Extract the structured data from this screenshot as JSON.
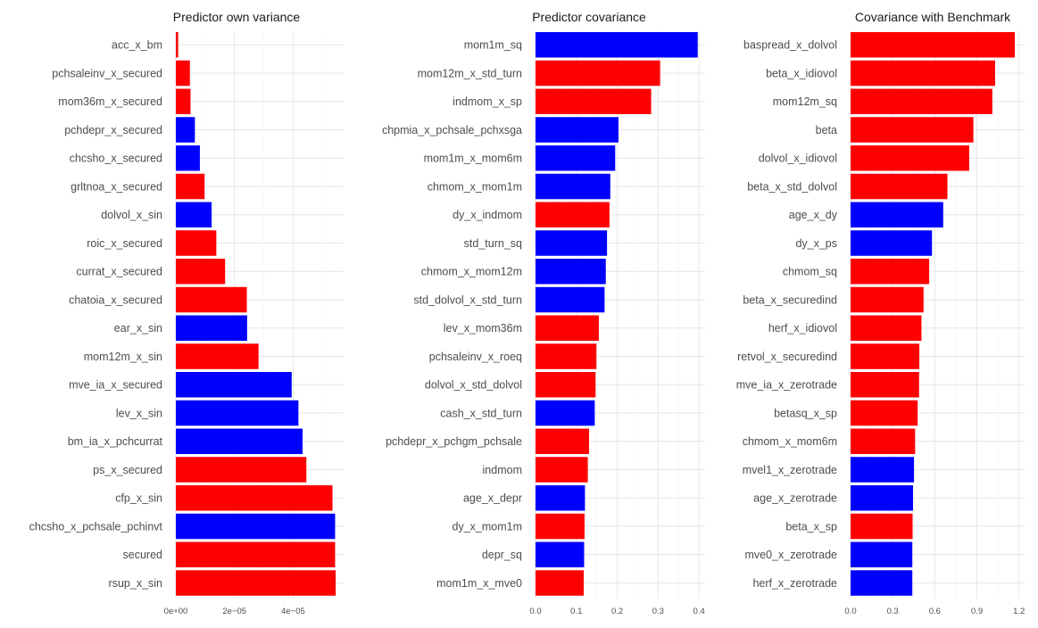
{
  "colors": {
    "red": "#ff0000",
    "blue": "#0000ff"
  },
  "chart_data": [
    {
      "type": "bar",
      "orientation": "horizontal",
      "title": "Predictor own variance",
      "xlabel": "",
      "ylabel": "",
      "xlim": [
        0,
        5.72e-05
      ],
      "xticks": [
        0,
        2e-05,
        4e-05
      ],
      "xtick_labels": [
        "0e+00",
        "2e−05",
        "4e−05"
      ],
      "categories": [
        "acc_x_bm",
        "pchsaleinv_x_secured",
        "mom36m_x_secured",
        "pchdepr_x_secured",
        "chcsho_x_secured",
        "grltnoa_x_secured",
        "dolvol_x_sin",
        "roic_x_secured",
        "currat_x_secured",
        "chatoia_x_secured",
        "ear_x_sin",
        "mom12m_x_sin",
        "mve_ia_x_secured",
        "lev_x_sin",
        "bm_ia_x_pchcurrat",
        "ps_x_secured",
        "cfp_x_sin",
        "chcsho_x_pchsale_pchinvt",
        "secured",
        "rsup_x_sin"
      ],
      "values": [
        8e-07,
        4.8e-06,
        5e-06,
        6.5e-06,
        8.2e-06,
        9.8e-06,
        1.22e-05,
        1.38e-05,
        1.68e-05,
        2.42e-05,
        2.43e-05,
        2.82e-05,
        3.95e-05,
        4.18e-05,
        4.32e-05,
        4.45e-05,
        5.34e-05,
        5.43e-05,
        5.43e-05,
        5.45e-05
      ],
      "bar_colors": [
        "red",
        "red",
        "red",
        "blue",
        "blue",
        "red",
        "blue",
        "red",
        "red",
        "red",
        "blue",
        "red",
        "blue",
        "blue",
        "blue",
        "red",
        "red",
        "blue",
        "red",
        "red"
      ]
    },
    {
      "type": "bar",
      "orientation": "horizontal",
      "title": "Predictor covariance",
      "xlabel": "",
      "ylabel": "",
      "xlim": [
        0,
        0.415
      ],
      "xticks": [
        0,
        0.1,
        0.2,
        0.3,
        0.4
      ],
      "xtick_labels": [
        "0.0",
        "0.1",
        "0.2",
        "0.3",
        "0.4"
      ],
      "categories": [
        "mom1m_sq",
        "mom12m_x_std_turn",
        "indmom_x_sp",
        "chpmia_x_pchsale_pchxsga",
        "mom1m_x_mom6m",
        "chmom_x_mom1m",
        "dy_x_indmom",
        "std_turn_sq",
        "chmom_x_mom12m",
        "std_dolvol_x_std_turn",
        "lev_x_mom36m",
        "pchsaleinv_x_roeq",
        "dolvol_x_std_dolvol",
        "cash_x_std_turn",
        "pchdepr_x_pchgm_pchsale",
        "indmom",
        "age_x_depr",
        "dy_x_mom1m",
        "depr_sq",
        "mom1m_x_mve0"
      ],
      "values": [
        0.397,
        0.305,
        0.283,
        0.203,
        0.195,
        0.183,
        0.181,
        0.175,
        0.172,
        0.169,
        0.155,
        0.149,
        0.147,
        0.145,
        0.131,
        0.128,
        0.121,
        0.12,
        0.119,
        0.118
      ],
      "bar_colors": [
        "blue",
        "red",
        "red",
        "blue",
        "blue",
        "blue",
        "red",
        "blue",
        "blue",
        "blue",
        "red",
        "red",
        "red",
        "blue",
        "red",
        "red",
        "blue",
        "red",
        "blue",
        "red"
      ]
    },
    {
      "type": "bar",
      "orientation": "horizontal",
      "title": "Covariance with Benchmark",
      "xlabel": "",
      "ylabel": "",
      "xlim": [
        0,
        1.24
      ],
      "xticks": [
        0,
        0.3,
        0.6,
        0.9,
        1.2
      ],
      "xtick_labels": [
        "0.0",
        "0.3",
        "0.6",
        "0.9",
        "1.2"
      ],
      "categories": [
        "baspread_x_dolvol",
        "beta_x_idiovol",
        "mom12m_sq",
        "beta",
        "dolvol_x_idiovol",
        "beta_x_std_dolvol",
        "age_x_dy",
        "dy_x_ps",
        "chmom_sq",
        "beta_x_securedind",
        "herf_x_idiovol",
        "retvol_x_securedind",
        "mve_ia_x_zerotrade",
        "betasq_x_sp",
        "chmom_x_mom6m",
        "mvel1_x_zerotrade",
        "age_x_zerotrade",
        "beta_x_sp",
        "mve0_x_zerotrade",
        "herf_x_zerotrade"
      ],
      "values": [
        1.17,
        1.03,
        1.01,
        0.875,
        0.845,
        0.69,
        0.66,
        0.58,
        0.56,
        0.52,
        0.505,
        0.49,
        0.488,
        0.478,
        0.46,
        0.452,
        0.445,
        0.442,
        0.44,
        0.44
      ],
      "bar_colors": [
        "red",
        "red",
        "red",
        "red",
        "red",
        "red",
        "blue",
        "blue",
        "red",
        "red",
        "red",
        "red",
        "red",
        "red",
        "red",
        "blue",
        "blue",
        "red",
        "blue",
        "blue"
      ]
    }
  ]
}
